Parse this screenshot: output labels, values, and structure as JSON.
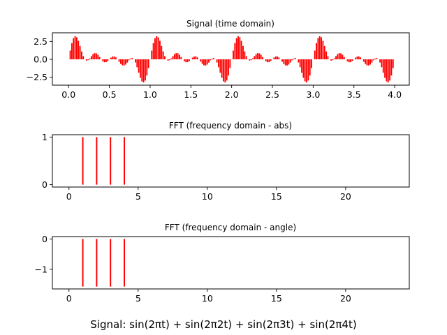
{
  "suptitle": "Signal: sin(2πt) + sin(2π2t) + sin(2π3t) + sin(2π4t)",
  "colors": {
    "bars": "#ff0000",
    "axes": "#000000",
    "background": "#ffffff"
  },
  "chart_data": [
    {
      "type": "bar",
      "title": "Signal (time domain)",
      "xlabel": "",
      "ylabel": "",
      "signal": "sin(2πt) + sin(2π2t) + sin(2π3t) + sin(2π4t)",
      "t_start": 0.0,
      "t_end": 3.98,
      "t_step": 0.02,
      "bar_width": 0.016,
      "xlim": [
        -0.199,
        4.179
      ],
      "ylim": [
        -3.6,
        3.7
      ],
      "xticks": [
        0.0,
        0.5,
        1.0,
        1.5,
        2.0,
        2.5,
        3.0,
        3.5,
        4.0
      ],
      "xtick_labels": [
        "0.0",
        "0.5",
        "1.0",
        "1.5",
        "2.0",
        "2.5",
        "3.0",
        "3.5",
        "4.0"
      ],
      "yticks": [
        2.5,
        0.0,
        -2.5
      ],
      "ytick_labels": [
        "2.5",
        "0.0",
        "−2.5"
      ],
      "grid": false,
      "legend": "none"
    },
    {
      "type": "bar",
      "title": "FFT (frequency domain - abs)",
      "xlabel": "",
      "ylabel": "",
      "x": [
        1,
        2,
        3,
        4
      ],
      "values": [
        1,
        1,
        1,
        1
      ],
      "bar_width": 0.1,
      "xlim": [
        -1.2,
        24.6
      ],
      "ylim": [
        -0.05,
        1.05
      ],
      "xticks": [
        0,
        5,
        10,
        15,
        20
      ],
      "xtick_labels": [
        "0",
        "5",
        "10",
        "15",
        "20"
      ],
      "yticks": [
        1,
        0
      ],
      "ytick_labels": [
        "1",
        "0"
      ],
      "grid": false,
      "legend": "none"
    },
    {
      "type": "bar",
      "title": "FFT (frequency domain - angle)",
      "xlabel": "",
      "ylabel": "",
      "x": [
        1,
        2,
        3,
        4
      ],
      "values": [
        -1.5708,
        -1.5708,
        -1.5708,
        -1.5708
      ],
      "bar_width": 0.1,
      "xlim": [
        -1.2,
        24.6
      ],
      "ylim": [
        -1.649,
        0.0785
      ],
      "xticks": [
        0,
        5,
        10,
        15,
        20
      ],
      "xtick_labels": [
        "0",
        "5",
        "10",
        "15",
        "20"
      ],
      "yticks": [
        0,
        -1
      ],
      "ytick_labels": [
        "0",
        "−1"
      ],
      "grid": false,
      "legend": "none"
    }
  ]
}
